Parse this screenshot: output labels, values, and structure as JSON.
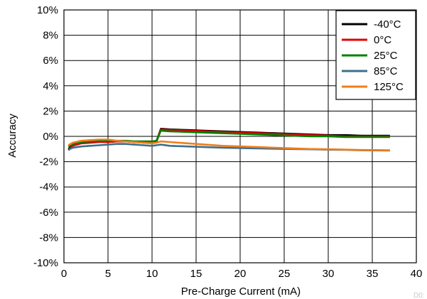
{
  "chart_data": {
    "type": "line",
    "title": "",
    "xlabel": "Pre-Charge Current (mA)",
    "ylabel": "Accuracy",
    "xlim": [
      0,
      40
    ],
    "ylim": [
      -10,
      10
    ],
    "x_ticks": [
      0,
      5,
      10,
      15,
      20,
      25,
      30,
      35,
      40
    ],
    "y_ticks": [
      -10,
      -8,
      -6,
      -4,
      -2,
      0,
      2,
      4,
      6,
      8,
      10
    ],
    "y_tick_suffix": "%",
    "grid": true,
    "legend_position": "top-right",
    "footnote": "D0:",
    "series": [
      {
        "name": "-40°C",
        "color": "#000000",
        "x": [
          0.5,
          1,
          2,
          3,
          4,
          5,
          6,
          7,
          8,
          9,
          10,
          10.5,
          11,
          12,
          14,
          16,
          18,
          20,
          22,
          24,
          26,
          28,
          30,
          32,
          34,
          37
        ],
        "y": [
          -1.0,
          -0.7,
          -0.5,
          -0.45,
          -0.4,
          -0.45,
          -0.4,
          -0.4,
          -0.45,
          -0.45,
          -0.45,
          -0.4,
          0.6,
          0.55,
          0.5,
          0.45,
          0.4,
          0.35,
          0.3,
          0.25,
          0.2,
          0.15,
          0.1,
          0.1,
          0.05,
          0.05
        ]
      },
      {
        "name": "0°C",
        "color": "#e00000",
        "x": [
          0.5,
          1,
          2,
          3,
          4,
          5,
          6,
          7,
          8,
          9,
          10,
          10.5,
          11,
          12,
          14,
          16,
          18,
          20,
          22,
          24,
          26,
          28,
          30,
          32,
          34,
          37
        ],
        "y": [
          -1.1,
          -0.75,
          -0.55,
          -0.5,
          -0.45,
          -0.45,
          -0.4,
          -0.4,
          -0.45,
          -0.5,
          -0.5,
          -0.45,
          0.55,
          0.5,
          0.45,
          0.4,
          0.35,
          0.3,
          0.25,
          0.2,
          0.15,
          0.1,
          0.05,
          0.0,
          0.0,
          0.0
        ]
      },
      {
        "name": "25°C",
        "color": "#008000",
        "x": [
          0.5,
          1,
          2,
          3,
          4,
          5,
          6,
          7,
          8,
          9,
          10,
          10.5,
          11,
          12,
          14,
          16,
          18,
          20,
          22,
          24,
          26,
          28,
          30,
          32,
          34,
          37
        ],
        "y": [
          -0.8,
          -0.6,
          -0.45,
          -0.4,
          -0.35,
          -0.35,
          -0.35,
          -0.35,
          -0.4,
          -0.4,
          -0.4,
          -0.35,
          0.45,
          0.4,
          0.35,
          0.3,
          0.25,
          0.2,
          0.15,
          0.1,
          0.05,
          0.0,
          0.0,
          -0.05,
          -0.05,
          -0.05
        ]
      },
      {
        "name": "85°C",
        "color": "#3d6e8c",
        "x": [
          0.5,
          1,
          2,
          3,
          4,
          5,
          6,
          7,
          8,
          9,
          10,
          10.5,
          11,
          12,
          14,
          16,
          18,
          20,
          22,
          24,
          26,
          28,
          30,
          32,
          34,
          37
        ],
        "y": [
          -1.05,
          -0.9,
          -0.8,
          -0.75,
          -0.7,
          -0.65,
          -0.6,
          -0.6,
          -0.65,
          -0.7,
          -0.75,
          -0.7,
          -0.65,
          -0.75,
          -0.8,
          -0.85,
          -0.9,
          -0.92,
          -0.95,
          -0.98,
          -1.0,
          -1.02,
          -1.05,
          -1.07,
          -1.1,
          -1.12
        ]
      },
      {
        "name": "125°C",
        "color": "#f07d1a",
        "x": [
          0.5,
          1,
          2,
          3,
          4,
          5,
          6,
          7,
          8,
          9,
          10,
          10.5,
          11,
          12,
          14,
          16,
          18,
          20,
          22,
          24,
          26,
          28,
          30,
          32,
          34,
          37
        ],
        "y": [
          -0.7,
          -0.5,
          -0.35,
          -0.3,
          -0.25,
          -0.25,
          -0.35,
          -0.4,
          -0.45,
          -0.5,
          -0.55,
          -0.5,
          -0.4,
          -0.45,
          -0.55,
          -0.65,
          -0.75,
          -0.8,
          -0.85,
          -0.9,
          -0.95,
          -1.0,
          -1.02,
          -1.05,
          -1.08,
          -1.1
        ]
      }
    ]
  }
}
